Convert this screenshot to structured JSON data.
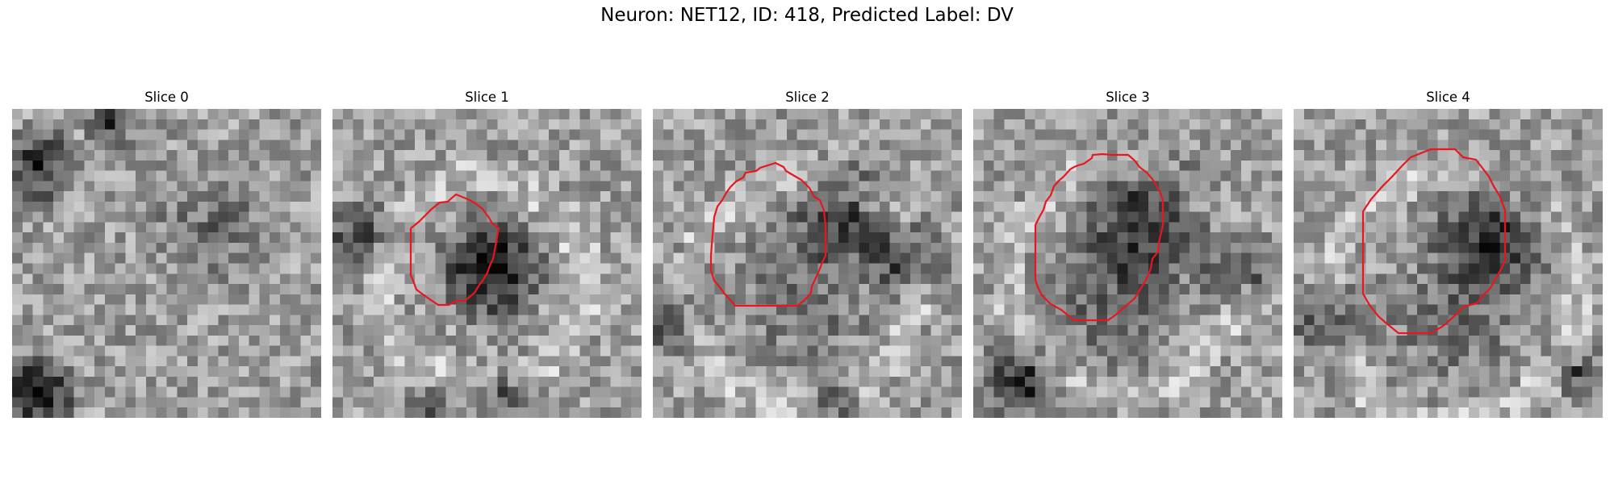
{
  "figure": {
    "title": "Neuron: NET12, ID: 418, Predicted Label: DV"
  },
  "panels": [
    {
      "title": "Slice 0",
      "contour_color": "#e8161e",
      "has_contour": false
    },
    {
      "title": "Slice 1",
      "contour_color": "#e8161e",
      "has_contour": true
    },
    {
      "title": "Slice 2",
      "contour_color": "#e8161e",
      "has_contour": true
    },
    {
      "title": "Slice 3",
      "contour_color": "#e8161e",
      "has_contour": true
    },
    {
      "title": "Slice 4",
      "contour_color": "#e8161e",
      "has_contour": true
    }
  ]
}
